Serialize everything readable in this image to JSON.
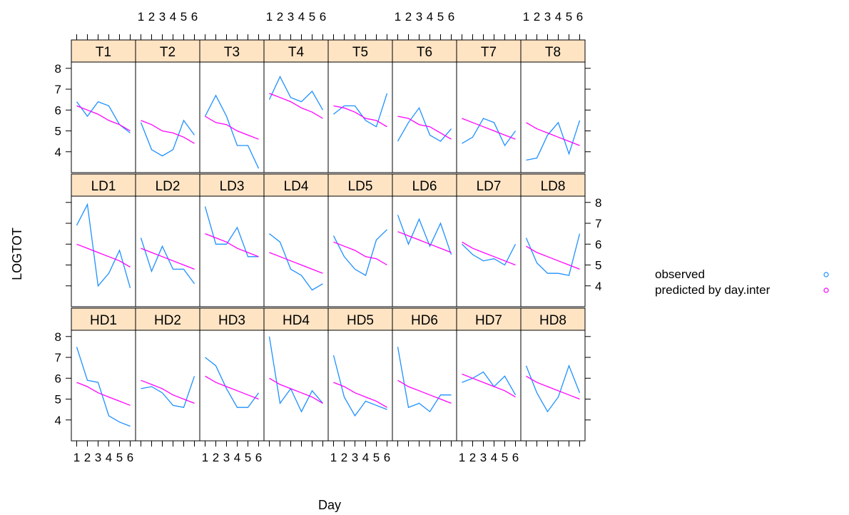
{
  "chart_data": {
    "type": "line",
    "xlabel": "Day",
    "ylabel": "LOGTOT",
    "x": [
      1,
      2,
      3,
      4,
      5,
      6
    ],
    "xlim": [
      0.5,
      6.5
    ],
    "ylim": [
      3,
      8.3
    ],
    "yticks": [
      4,
      5,
      6,
      7,
      8
    ],
    "colors": {
      "observed": "#1e90ff",
      "predicted": "#ff00ff",
      "strip": "#ffe4c4"
    },
    "legend": {
      "placement": "right",
      "entries": [
        {
          "label": "observed",
          "color": "#1e90ff",
          "marker": "circle-open"
        },
        {
          "label": "predicted by day.inter",
          "color": "#ff00ff",
          "marker": "circle-open"
        }
      ]
    },
    "rows": [
      {
        "panels": [
          {
            "label": "T1",
            "observed": [
              6.4,
              5.7,
              6.4,
              6.2,
              5.3,
              4.9
            ],
            "predicted": [
              6.2,
              6.0,
              5.8,
              5.5,
              5.3,
              5.0
            ]
          },
          {
            "label": "T2",
            "observed": [
              5.4,
              4.1,
              3.8,
              4.1,
              5.5,
              4.8
            ],
            "predicted": [
              5.5,
              5.3,
              5.0,
              4.9,
              4.7,
              4.4
            ]
          },
          {
            "label": "T3",
            "observed": [
              5.7,
              6.7,
              5.7,
              4.3,
              4.3,
              3.2
            ],
            "predicted": [
              5.7,
              5.4,
              5.3,
              5.0,
              4.8,
              4.6
            ]
          },
          {
            "label": "T4",
            "observed": [
              6.5,
              7.6,
              6.6,
              6.4,
              6.9,
              6.0
            ],
            "predicted": [
              6.8,
              6.6,
              6.4,
              6.1,
              5.9,
              5.6
            ]
          },
          {
            "label": "T5",
            "observed": [
              5.8,
              6.2,
              6.2,
              5.5,
              5.2,
              6.8
            ],
            "predicted": [
              6.2,
              6.1,
              5.9,
              5.6,
              5.5,
              5.2
            ]
          },
          {
            "label": "T6",
            "observed": [
              4.5,
              5.4,
              6.1,
              4.8,
              4.5,
              5.1
            ],
            "predicted": [
              5.7,
              5.6,
              5.3,
              5.2,
              4.9,
              4.6
            ]
          },
          {
            "label": "T7",
            "observed": [
              4.4,
              4.7,
              5.6,
              5.4,
              4.3,
              5.0
            ],
            "predicted": [
              5.6,
              5.4,
              5.2,
              5.0,
              4.8,
              4.6
            ]
          },
          {
            "label": "T8",
            "observed": [
              3.6,
              3.7,
              4.8,
              5.4,
              3.9,
              5.5
            ],
            "predicted": [
              5.4,
              5.1,
              4.9,
              4.7,
              4.5,
              4.3
            ]
          }
        ]
      },
      {
        "panels": [
          {
            "label": "LD1",
            "observed": [
              6.9,
              7.9,
              4.0,
              4.6,
              5.7,
              3.9
            ],
            "predicted": [
              6.0,
              5.8,
              5.6,
              5.4,
              5.2,
              4.9
            ]
          },
          {
            "label": "LD2",
            "observed": [
              6.3,
              4.7,
              5.9,
              4.8,
              4.8,
              4.1
            ],
            "predicted": [
              5.8,
              5.6,
              5.4,
              5.2,
              5.0,
              4.8
            ]
          },
          {
            "label": "LD3",
            "observed": [
              7.8,
              6.0,
              6.0,
              6.8,
              5.4,
              5.4
            ],
            "predicted": [
              6.5,
              6.3,
              6.1,
              5.8,
              5.6,
              5.4
            ]
          },
          {
            "label": "LD4",
            "observed": [
              6.5,
              6.1,
              4.8,
              4.5,
              3.8,
              4.1
            ],
            "predicted": [
              5.6,
              5.4,
              5.2,
              5.0,
              4.8,
              4.6
            ]
          },
          {
            "label": "LD5",
            "observed": [
              6.4,
              5.4,
              4.8,
              4.5,
              6.2,
              6.7
            ],
            "predicted": [
              6.1,
              5.9,
              5.7,
              5.4,
              5.3,
              5.0
            ]
          },
          {
            "label": "LD6",
            "observed": [
              7.4,
              6.0,
              7.2,
              5.9,
              7.0,
              5.5
            ],
            "predicted": [
              6.6,
              6.4,
              6.2,
              6.0,
              5.8,
              5.6
            ]
          },
          {
            "label": "LD7",
            "observed": [
              6.0,
              5.5,
              5.2,
              5.3,
              5.0,
              6.0
            ],
            "predicted": [
              6.1,
              5.8,
              5.6,
              5.4,
              5.2,
              5.0
            ]
          },
          {
            "label": "LD8",
            "observed": [
              6.3,
              5.1,
              4.6,
              4.6,
              4.5,
              6.5
            ],
            "predicted": [
              5.9,
              5.6,
              5.4,
              5.2,
              5.0,
              4.8
            ]
          }
        ]
      },
      {
        "panels": [
          {
            "label": "HD1",
            "observed": [
              7.5,
              5.9,
              5.8,
              4.2,
              3.9,
              3.7
            ],
            "predicted": [
              5.8,
              5.6,
              5.3,
              5.1,
              4.9,
              4.7
            ]
          },
          {
            "label": "HD2",
            "observed": [
              5.5,
              5.6,
              5.3,
              4.7,
              4.6,
              6.1
            ],
            "predicted": [
              5.9,
              5.7,
              5.5,
              5.2,
              5.0,
              4.8
            ]
          },
          {
            "label": "HD3",
            "observed": [
              7.0,
              6.6,
              5.5,
              4.6,
              4.6,
              5.3
            ],
            "predicted": [
              6.1,
              5.8,
              5.6,
              5.4,
              5.2,
              5.0
            ]
          },
          {
            "label": "HD4",
            "observed": [
              8.0,
              4.8,
              5.5,
              4.4,
              5.4,
              4.8
            ],
            "predicted": [
              6.0,
              5.7,
              5.5,
              5.3,
              5.1,
              4.8
            ]
          },
          {
            "label": "HD5",
            "observed": [
              7.1,
              5.1,
              4.2,
              4.9,
              4.7,
              4.5
            ],
            "predicted": [
              5.8,
              5.6,
              5.3,
              5.1,
              4.9,
              4.6
            ]
          },
          {
            "label": "HD6",
            "observed": [
              7.5,
              4.6,
              4.8,
              4.4,
              5.2,
              5.2
            ],
            "predicted": [
              5.9,
              5.6,
              5.4,
              5.2,
              5.0,
              4.8
            ]
          },
          {
            "label": "HD7",
            "observed": [
              5.8,
              6.0,
              6.3,
              5.6,
              6.1,
              5.2
            ],
            "predicted": [
              6.2,
              6.0,
              5.8,
              5.6,
              5.4,
              5.1
            ]
          },
          {
            "label": "HD8",
            "observed": [
              6.6,
              5.3,
              4.4,
              5.1,
              6.6,
              5.3
            ],
            "predicted": [
              6.1,
              5.8,
              5.6,
              5.4,
              5.2,
              5.0
            ]
          }
        ]
      }
    ]
  }
}
